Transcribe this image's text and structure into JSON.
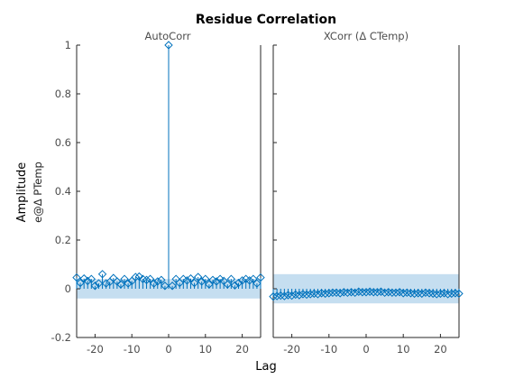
{
  "chart_data": {
    "type": "stem",
    "title": "Residue Correlation",
    "xlabel": "Lag",
    "ylabel": "Amplitude",
    "ylabel_secondary": "e@Δ PTemp",
    "colors": {
      "stem": "#0072BD",
      "band": "#C5DEF0",
      "axis": "#262626"
    },
    "marker": "diamond",
    "grid": false,
    "panels": [
      {
        "title": "AutoCorr",
        "xlim": [
          -25,
          25
        ],
        "ylim": [
          -0.2,
          1
        ],
        "xticks": [
          -20,
          -10,
          0,
          10,
          20
        ],
        "yticks": [
          -0.2,
          0,
          0.2,
          0.4,
          0.6,
          0.8,
          1
        ],
        "xtick_labels": [
          "-20",
          "-10",
          "0",
          "10",
          "20"
        ],
        "ytick_labels": [
          "-0.2",
          "0",
          "0.2",
          "0.4",
          "0.6",
          "0.8",
          "1"
        ],
        "confidence_band": [
          -0.04,
          0.04
        ],
        "lags": [
          -25,
          -24,
          -23,
          -22,
          -21,
          -20,
          -19,
          -18,
          -17,
          -16,
          -15,
          -14,
          -13,
          -12,
          -11,
          -10,
          -9,
          -8,
          -7,
          -6,
          -5,
          -4,
          -3,
          -2,
          -1,
          0,
          1,
          2,
          3,
          4,
          5,
          6,
          7,
          8,
          9,
          10,
          11,
          12,
          13,
          14,
          15,
          16,
          17,
          18,
          19,
          20,
          21,
          22,
          23,
          24,
          25
        ],
        "values": [
          0.046,
          0.024,
          0.042,
          0.032,
          0.04,
          0.012,
          0.022,
          0.06,
          0.022,
          0.028,
          0.044,
          0.03,
          0.018,
          0.04,
          0.022,
          0.032,
          0.048,
          0.05,
          0.04,
          0.036,
          0.04,
          0.022,
          0.03,
          0.036,
          0.012,
          1.0,
          0.012,
          0.04,
          0.024,
          0.04,
          0.034,
          0.042,
          0.024,
          0.048,
          0.03,
          0.04,
          0.018,
          0.036,
          0.03,
          0.04,
          0.032,
          0.018,
          0.04,
          0.014,
          0.024,
          0.034,
          0.04,
          0.034,
          0.04,
          0.022,
          0.046
        ]
      },
      {
        "title": "XCorr (Δ CTemp)",
        "xlim": [
          -25,
          25
        ],
        "ylim": [
          -0.2,
          1
        ],
        "xticks": [
          -20,
          -10,
          0,
          10,
          20
        ],
        "yticks": [
          -0.2,
          0,
          0.2,
          0.4,
          0.6,
          0.8,
          1
        ],
        "xtick_labels": [
          "-20",
          "-10",
          "0",
          "10",
          "20"
        ],
        "ytick_labels": [],
        "confidence_band": [
          -0.06,
          0.06
        ],
        "lags": [
          -25,
          -24,
          -23,
          -22,
          -21,
          -20,
          -19,
          -18,
          -17,
          -16,
          -15,
          -14,
          -13,
          -12,
          -11,
          -10,
          -9,
          -8,
          -7,
          -6,
          -5,
          -4,
          -3,
          -2,
          -1,
          0,
          1,
          2,
          3,
          4,
          5,
          6,
          7,
          8,
          9,
          10,
          11,
          12,
          13,
          14,
          15,
          16,
          17,
          18,
          19,
          20,
          21,
          22,
          23,
          24,
          25
        ],
        "values": [
          -0.032,
          -0.03,
          -0.028,
          -0.03,
          -0.026,
          -0.028,
          -0.024,
          -0.026,
          -0.022,
          -0.024,
          -0.022,
          -0.02,
          -0.022,
          -0.018,
          -0.02,
          -0.018,
          -0.016,
          -0.016,
          -0.018,
          -0.014,
          -0.016,
          -0.014,
          -0.016,
          -0.012,
          -0.014,
          -0.014,
          -0.012,
          -0.014,
          -0.014,
          -0.012,
          -0.016,
          -0.014,
          -0.016,
          -0.016,
          -0.014,
          -0.018,
          -0.016,
          -0.018,
          -0.02,
          -0.018,
          -0.02,
          -0.016,
          -0.018,
          -0.02,
          -0.022,
          -0.02,
          -0.018,
          -0.022,
          -0.02,
          -0.018,
          -0.02
        ]
      }
    ]
  }
}
